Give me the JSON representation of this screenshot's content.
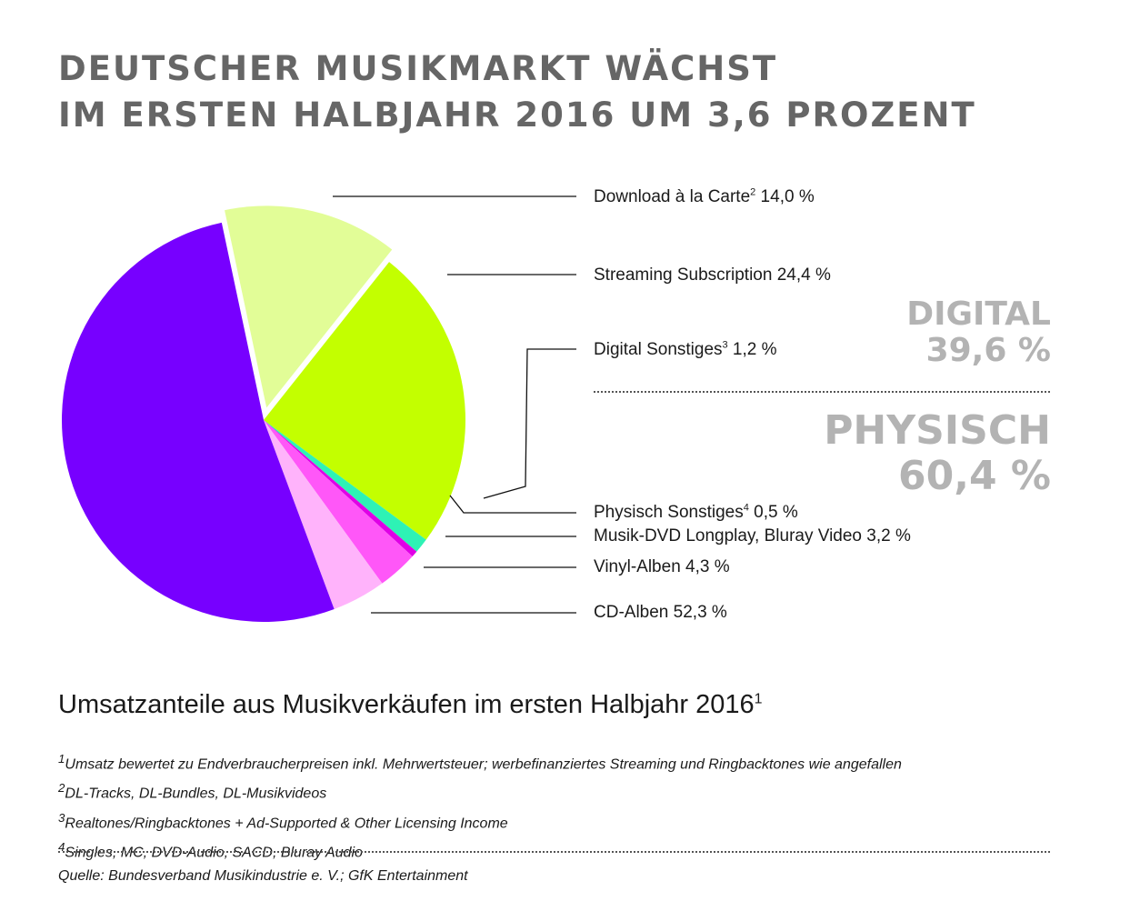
{
  "title": {
    "line1": "DEUTSCHER MUSIKMARKT WÄCHST",
    "line2": "IM ERSTEN HALBJAHR 2016 UM 3,6 PROZENT"
  },
  "chart_data": {
    "type": "pie",
    "title": "Umsatzanteile aus Musikverkäufen im ersten Halbjahr 2016",
    "unit": "%",
    "slices": [
      {
        "name": "Download à la Carte",
        "note": "2",
        "value": 14.0,
        "value_text": "14,0 %",
        "color": "#e2fd97",
        "group": "digital"
      },
      {
        "name": "Streaming Subscription",
        "note": "",
        "value": 24.4,
        "value_text": "24,4 %",
        "color": "#c3ff00",
        "group": "digital"
      },
      {
        "name": "Digital Sonstiges",
        "note": "3",
        "value": 1.2,
        "value_text": "1,2 %",
        "color": "#2ef2b5",
        "group": "digital"
      },
      {
        "name": "Physisch Sonstiges",
        "note": "4",
        "value": 0.5,
        "value_text": "0,5 %",
        "color": "#e000e6",
        "group": "physisch"
      },
      {
        "name": "Musik-DVD Longplay, Bluray Video",
        "note": "",
        "value": 3.2,
        "value_text": "3,2 %",
        "color": "#ff57f8",
        "group": "physisch"
      },
      {
        "name": "Vinyl-Alben",
        "note": "",
        "value": 4.3,
        "value_text": "4,3 %",
        "color": "#ffb3fb",
        "group": "physisch"
      },
      {
        "name": "CD-Alben",
        "note": "",
        "value": 52.3,
        "value_text": "52,3 %",
        "color": "#7700ff",
        "group": "physisch"
      }
    ],
    "totals": {
      "digital_label": "DIGITAL",
      "digital_value": "39,6 %",
      "physisch_label": "PHYSISCH",
      "physisch_value": "60,4 %"
    }
  },
  "subtitle": {
    "text": "Umsatzanteile aus Musikverkäufen im ersten Halbjahr 2016",
    "note": "1"
  },
  "footnotes": [
    {
      "mark": "1",
      "text": "Umsatz bewertet zu Endverbraucherpreisen inkl. Mehrwertsteuer; werbefinanziertes Streaming und Ringbacktones wie angefallen"
    },
    {
      "mark": "2",
      "text": "DL-Tracks, DL-Bundles, DL-Musikvideos"
    },
    {
      "mark": "3",
      "text": "Realtones/Ringbacktones + Ad-Supported & Other Licensing Income"
    },
    {
      "mark": "4",
      "text": "Singles, MC, DVD-Audio, SACD, Bluray Audio"
    }
  ],
  "source": "Quelle: Bundesverband Musikindustrie e. V.; GfK Entertainment"
}
